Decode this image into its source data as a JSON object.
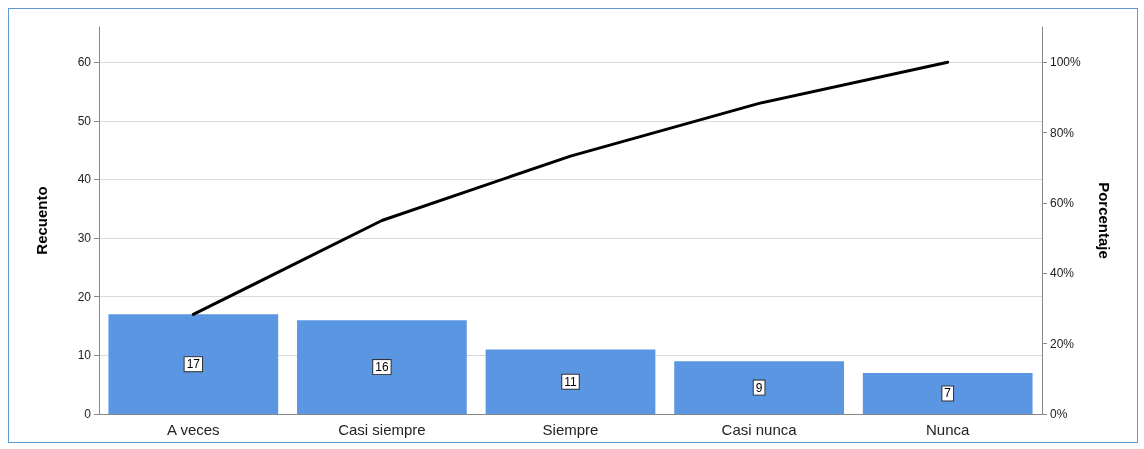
{
  "chart_data": {
    "type": "bar",
    "ylabel": "Recuento",
    "y2label": "Porcentaje",
    "categories": [
      "A veces",
      "Casi siempre",
      "Siempre",
      "Casi nunca",
      "Nunca"
    ],
    "series": [
      {
        "color": "#5b96e3",
        "values": [
          17,
          16,
          11,
          9,
          7
        ],
        "value_labels": [
          "17",
          "16",
          "11",
          "9",
          "7"
        ]
      },
      {
        "type": "line",
        "axis": "y2",
        "color": "#000000",
        "values": [
          28.3,
          55,
          73.3,
          88.3,
          100
        ]
      }
    ],
    "ylim": [
      0,
      66
    ],
    "yticks": [
      0,
      10,
      20,
      30,
      40,
      50,
      60
    ],
    "y2lim": [
      0,
      110
    ],
    "y2ticks": [
      {
        "value": 0,
        "label": "0%"
      },
      {
        "value": 20,
        "label": "20%"
      },
      {
        "value": 40,
        "label": "40%"
      },
      {
        "value": 60,
        "label": "60%"
      },
      {
        "value": 80,
        "label": "80%"
      },
      {
        "value": 100,
        "label": "100%"
      }
    ],
    "grid": "y",
    "marker": "none",
    "line_style": "solid"
  }
}
